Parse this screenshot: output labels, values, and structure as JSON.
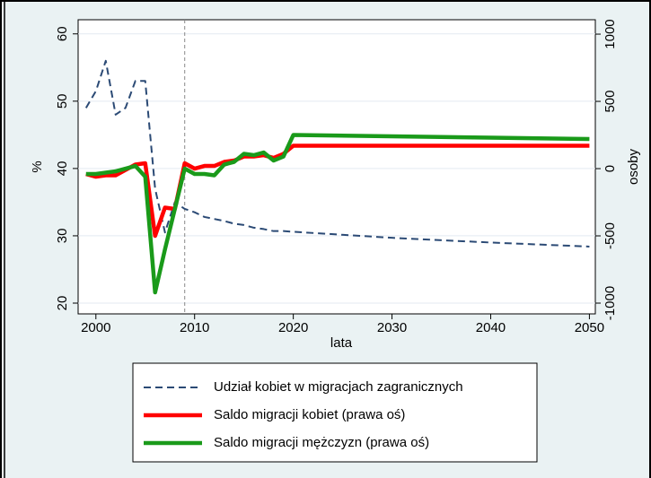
{
  "chart_data": {
    "type": "line",
    "x_label": "lata",
    "y_label": "%",
    "y2_label": "osoby",
    "x": [
      1999,
      2000,
      2001,
      2002,
      2003,
      2004,
      2005,
      2006,
      2007,
      2008,
      2009,
      2010,
      2011,
      2012,
      2013,
      2014,
      2015,
      2016,
      2017,
      2018,
      2019,
      2020,
      2030,
      2040,
      2050
    ],
    "xlim": [
      1998.2,
      2050.6
    ],
    "xticks": [
      2000,
      2010,
      2020,
      2030,
      2040,
      2050
    ],
    "ylim": [
      18.4,
      62.1
    ],
    "yticks": [
      20,
      30,
      40,
      50,
      60
    ],
    "y2lim": [
      -1080,
      1107
    ],
    "y2ticks": [
      -1000,
      -500,
      0,
      500,
      1000
    ],
    "grid": true,
    "vline": 2009,
    "series": [
      {
        "name": "Udział kobiet w migracjach zagranicznych",
        "color": "#2b4a75",
        "dash": true,
        "axis": "y",
        "values": [
          49,
          51.5,
          56,
          48,
          49,
          53,
          53,
          37,
          30.5,
          35,
          34,
          33.5,
          32.8,
          32.5,
          32.2,
          31.8,
          31.6,
          31.2,
          31,
          30.7,
          30.7,
          30.6,
          29.7,
          29,
          28.4
        ]
      },
      {
        "name": "Saldo migracji kobiet (prawa oś)",
        "color": "#ff0000",
        "axis": "y2",
        "values": [
          -40,
          -60,
          -50,
          -50,
          -10,
          30,
          40,
          -500,
          -290,
          -300,
          40,
          0,
          20,
          20,
          50,
          60,
          90,
          90,
          100,
          80,
          110,
          170,
          170,
          170,
          170
        ]
      },
      {
        "name": "Saldo migracji mężczyzn (prawa oś)",
        "color": "#1a9a1a",
        "axis": "y2",
        "values": [
          -40,
          -40,
          -30,
          -20,
          0,
          20,
          -60,
          -920,
          -600,
          -300,
          0,
          -40,
          -40,
          -50,
          30,
          50,
          110,
          100,
          120,
          60,
          90,
          250,
          240,
          230,
          220
        ]
      }
    ]
  }
}
